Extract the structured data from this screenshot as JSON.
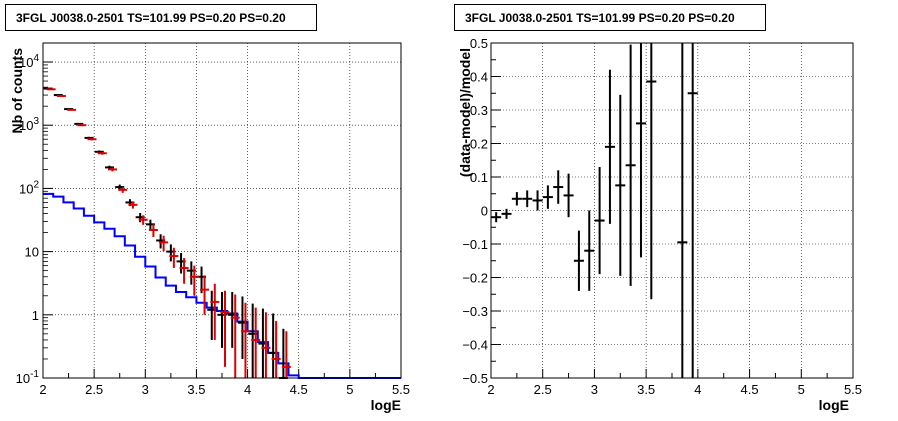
{
  "chart_data": [
    {
      "type": "histogram",
      "title": "3FGL J0038.0-2501 TS=101.99 PS=0.20 PS=0.20",
      "xlabel": "logE",
      "ylabel": "Nb of counts",
      "xlim": [
        2,
        5.5
      ],
      "ylim": [
        0.1,
        20000
      ],
      "yscale": "log",
      "grid": true,
      "xticks": [
        "2",
        "2.5",
        "3",
        "3.5",
        "4",
        "4.5",
        "5",
        "5.5"
      ],
      "yticks": [
        {
          "v": 0.1,
          "label": "10",
          "sup": "-1"
        },
        {
          "v": 1,
          "label": "1",
          "sup": ""
        },
        {
          "v": 10,
          "label": "10",
          "sup": ""
        },
        {
          "v": 100,
          "label": "10",
          "sup": "2"
        },
        {
          "v": 1000,
          "label": "10",
          "sup": "3"
        },
        {
          "v": 10000,
          "label": "10",
          "sup": "4"
        }
      ],
      "bin_edges": [
        2.0,
        2.1,
        2.2,
        2.3,
        2.4,
        2.5,
        2.6,
        2.7,
        2.8,
        2.9,
        3.0,
        3.1,
        3.2,
        3.3,
        3.4,
        3.5,
        3.6,
        3.7,
        3.8,
        3.9,
        4.0,
        4.1,
        4.2,
        4.3,
        4.4,
        4.5,
        5.5
      ],
      "series": [
        {
          "name": "model",
          "style": "step",
          "color": "#0000ff",
          "values": [
            82,
            74,
            60,
            48,
            37,
            29,
            23,
            17.5,
            12.5,
            8.3,
            5.8,
            3.9,
            2.9,
            2.3,
            1.9,
            1.55,
            1.3,
            1.15,
            1.05,
            0.78,
            0.55,
            0.37,
            0.25,
            0.17,
            0.11,
            0.1
          ]
        },
        {
          "name": "data",
          "style": "errorbar",
          "color": "#000000",
          "x": [
            2.05,
            2.15,
            2.25,
            2.35,
            2.45,
            2.55,
            2.65,
            2.75,
            2.85,
            2.95,
            3.05,
            3.15,
            3.25,
            3.35,
            3.45,
            3.55,
            3.65,
            3.75,
            3.85,
            3.95,
            4.05,
            4.15,
            4.25,
            4.35
          ],
          "y": [
            3800,
            3000,
            1800,
            1050,
            630,
            380,
            215,
            105,
            60,
            35,
            27,
            15,
            10,
            7,
            5,
            4,
            1.2,
            1,
            1,
            0.75,
            0.5,
            0.35,
            0.25,
            0.1
          ],
          "err_low": [
            60,
            55,
            42,
            32,
            25,
            19,
            14,
            10,
            7.5,
            5.8,
            5,
            3.8,
            3,
            2.5,
            2,
            1.8,
            0.8,
            0.7,
            0.7,
            0.55,
            0.4,
            0.3,
            0.22,
            0.05
          ],
          "err_high": [
            60,
            55,
            42,
            32,
            25,
            19,
            14,
            10,
            7.5,
            5.8,
            5,
            3.8,
            3,
            2.5,
            2,
            1.8,
            1.2,
            1.3,
            1.3,
            1.2,
            1,
            0.9,
            0.8,
            0.5
          ]
        },
        {
          "name": "model-weighted",
          "style": "errorbar",
          "color": "#dd0000",
          "x": [
            2.05,
            2.15,
            2.25,
            2.35,
            2.45,
            2.55,
            2.65,
            2.75,
            2.85,
            2.95,
            3.05,
            3.15,
            3.25,
            3.35,
            3.45,
            3.55,
            3.65,
            3.75,
            3.85,
            3.95,
            4.05,
            4.15,
            4.25,
            4.35
          ],
          "y": [
            3700,
            2900,
            1750,
            1000,
            600,
            360,
            200,
            95,
            55,
            32,
            22,
            14,
            8.5,
            5.5,
            4,
            2.5,
            1.6,
            1.1,
            0.9,
            0.55,
            0.4,
            0.3,
            0.2,
            0.15
          ],
          "err_low": [
            60,
            55,
            42,
            32,
            25,
            19,
            14,
            10,
            7,
            5.5,
            5,
            3.8,
            3,
            2.4,
            2,
            1.5,
            1.2,
            0.95,
            0.8,
            0.5,
            0.37,
            0.28,
            0.19,
            0.05
          ],
          "err_high": [
            60,
            55,
            42,
            32,
            25,
            19,
            14,
            10,
            7,
            5.5,
            5,
            3.8,
            3,
            2.4,
            2,
            1.7,
            1.5,
            1.3,
            1.2,
            1,
            0.9,
            0.8,
            0.6,
            0.4
          ]
        }
      ]
    },
    {
      "type": "scatter",
      "title": "3FGL J0038.0-2501 TS=101.99 PS=0.20 PS=0.20",
      "xlabel": "logE",
      "ylabel": "(data-model)/model",
      "xlim": [
        2,
        5.5
      ],
      "ylim": [
        -0.5,
        0.5
      ],
      "grid": true,
      "xticks": [
        "2",
        "2.5",
        "3",
        "3.5",
        "4",
        "4.5",
        "5",
        "5.5"
      ],
      "yticks": [
        "-0.5",
        "-0.4",
        "-0.3",
        "-0.2",
        "-0.1",
        "0",
        "0.1",
        "0.2",
        "0.3",
        "0.4",
        "0.5"
      ],
      "series": [
        {
          "name": "residual",
          "color": "#000000",
          "x": [
            2.05,
            2.15,
            2.25,
            2.35,
            2.45,
            2.55,
            2.65,
            2.75,
            2.85,
            2.95,
            3.05,
            3.15,
            3.25,
            3.35,
            3.45,
            3.55,
            3.85,
            3.95
          ],
          "y": [
            -0.02,
            -0.01,
            0.035,
            0.035,
            0.03,
            0.04,
            0.07,
            0.045,
            -0.15,
            -0.12,
            -0.03,
            0.19,
            0.075,
            0.135,
            0.26,
            0.385,
            -0.095,
            0.35
          ],
          "err": [
            0.015,
            0.015,
            0.02,
            0.025,
            0.03,
            0.035,
            0.05,
            0.065,
            0.09,
            0.12,
            0.16,
            0.23,
            0.27,
            0.36,
            0.4,
            0.65,
            1.0,
            1.0
          ]
        }
      ]
    }
  ]
}
